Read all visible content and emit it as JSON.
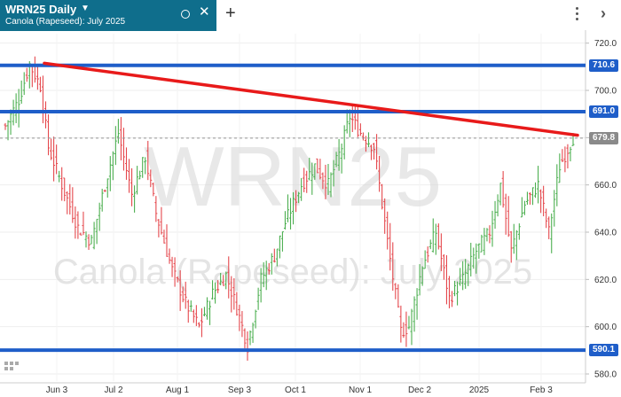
{
  "tab": {
    "symbol": "WRN25 Daily",
    "description": "Canola (Rapeseed): July 2025",
    "color": "#0f6e8c"
  },
  "toolbar": {
    "add_icon": "plus-icon",
    "menu_icon": "kebab-menu-icon",
    "collapse_icon": "chevron-right-icon"
  },
  "watermark": {
    "symbol": "WRN25",
    "description": "Canola (Rapeseed): July 2025"
  },
  "chart_data": {
    "type": "ohlc",
    "x_axis_labels": [
      "Jun 3",
      "Jul 2",
      "Aug 1",
      "Sep 3",
      "Oct 1",
      "Nov 1",
      "Dec 2",
      "2025",
      "Feb 3"
    ],
    "y_ticks": [
      720.0,
      700.0,
      680.0,
      660.0,
      640.0,
      620.0,
      600.0,
      580.0
    ],
    "y_tick_labels": [
      "720.0",
      "700.0",
      "680.0",
      "660.0",
      "640.0",
      "620.0",
      "600.0",
      "580.0"
    ],
    "ylim": [
      577,
      724
    ],
    "last_price": {
      "value": 679.8,
      "label": "679.8",
      "color": "#8a8a8a"
    },
    "levels": [
      {
        "value": 710.6,
        "label": "710.6",
        "color": "#1f5ec9"
      },
      {
        "value": 691.0,
        "label": "691.0",
        "color": "#1f5ec9"
      },
      {
        "value": 590.1,
        "label": "590.1",
        "color": "#1f5ec9"
      }
    ],
    "trendline": {
      "start": {
        "x": "May 27",
        "y": 711.5
      },
      "end": {
        "x": "Feb 11",
        "y": 681.0
      },
      "color": "#e81a1a"
    },
    "up_color": "#4caf50",
    "down_color": "#e5484d",
    "anchors": [
      {
        "i": 0,
        "p": 685
      },
      {
        "i": 5,
        "p": 696
      },
      {
        "i": 9,
        "p": 711
      },
      {
        "i": 13,
        "p": 702
      },
      {
        "i": 16,
        "p": 676
      },
      {
        "i": 22,
        "p": 657
      },
      {
        "i": 27,
        "p": 642
      },
      {
        "i": 32,
        "p": 636
      },
      {
        "i": 37,
        "p": 660
      },
      {
        "i": 42,
        "p": 682
      },
      {
        "i": 47,
        "p": 656
      },
      {
        "i": 52,
        "p": 672
      },
      {
        "i": 56,
        "p": 648
      },
      {
        "i": 62,
        "p": 624
      },
      {
        "i": 67,
        "p": 610
      },
      {
        "i": 72,
        "p": 600
      },
      {
        "i": 77,
        "p": 614
      },
      {
        "i": 82,
        "p": 622
      },
      {
        "i": 86,
        "p": 608
      },
      {
        "i": 90,
        "p": 592
      },
      {
        "i": 95,
        "p": 620
      },
      {
        "i": 100,
        "p": 630
      },
      {
        "i": 104,
        "p": 644
      },
      {
        "i": 110,
        "p": 660
      },
      {
        "i": 115,
        "p": 668
      },
      {
        "i": 120,
        "p": 660
      },
      {
        "i": 125,
        "p": 676
      },
      {
        "i": 128,
        "p": 689
      },
      {
        "i": 132,
        "p": 682
      },
      {
        "i": 137,
        "p": 676
      },
      {
        "i": 142,
        "p": 636
      },
      {
        "i": 147,
        "p": 598
      },
      {
        "i": 150,
        "p": 600
      },
      {
        "i": 155,
        "p": 626
      },
      {
        "i": 160,
        "p": 640
      },
      {
        "i": 165,
        "p": 612
      },
      {
        "i": 170,
        "p": 620
      },
      {
        "i": 175,
        "p": 632
      },
      {
        "i": 180,
        "p": 640
      },
      {
        "i": 184,
        "p": 660
      },
      {
        "i": 188,
        "p": 632
      },
      {
        "i": 193,
        "p": 652
      },
      {
        "i": 198,
        "p": 660
      },
      {
        "i": 202,
        "p": 640
      },
      {
        "i": 206,
        "p": 668
      },
      {
        "i": 211,
        "p": 680
      }
    ]
  }
}
